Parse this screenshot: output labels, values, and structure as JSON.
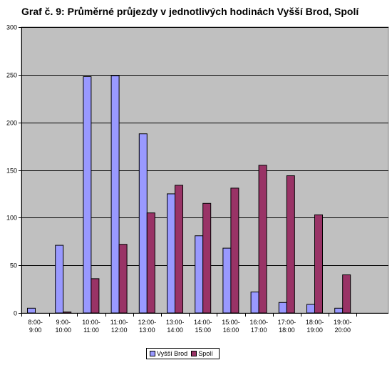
{
  "chart_data": {
    "type": "bar",
    "title": "Graf č. 9: Průměrné průjezdy v jednotlivých hodinách Vyšší Brod, Spolí",
    "xlabel": "",
    "ylabel": "",
    "ylim": [
      0,
      300
    ],
    "yticks": [
      "0",
      "50",
      "100",
      "150",
      "200",
      "250",
      "300"
    ],
    "categories": [
      [
        "8:00-",
        "9:00"
      ],
      [
        "9:00-",
        "10:00"
      ],
      [
        "10:00-",
        "11:00"
      ],
      [
        "11:00-",
        "12:00"
      ],
      [
        "12:00-",
        "13:00"
      ],
      [
        "13:00-",
        "14:00"
      ],
      [
        "14:00-",
        "15:00"
      ],
      [
        "15:00-",
        "16:00"
      ],
      [
        "16:00-",
        "17:00"
      ],
      [
        "17:00-",
        "18:00"
      ],
      [
        "18:00-",
        "19:00"
      ],
      [
        "19:00-",
        "20:00"
      ]
    ],
    "series": [
      {
        "name": "Vyšší Brod",
        "color": "#9999ff",
        "values": [
          5,
          71,
          248,
          249,
          188,
          125,
          81,
          68,
          22,
          11,
          9,
          5
        ]
      },
      {
        "name": "Spolí",
        "color": "#993366",
        "values": [
          0,
          1,
          36,
          72,
          105,
          134,
          115,
          131,
          155,
          144,
          103,
          40
        ]
      }
    ],
    "grid": true,
    "plot_background": "#c0c0c0",
    "legend_position": "bottom"
  }
}
